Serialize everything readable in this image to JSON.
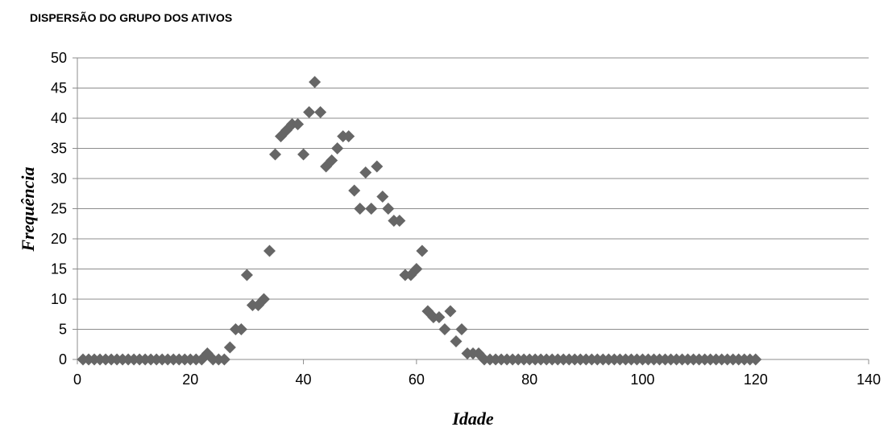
{
  "chart_data": {
    "type": "scatter",
    "title": "DISPERSÃO DO GRUPO DOS ATIVOS",
    "xlabel": "Idade",
    "ylabel": "Frequência",
    "xlim": [
      0,
      140
    ],
    "ylim": [
      0,
      50
    ],
    "xticks": [
      0,
      20,
      40,
      60,
      80,
      100,
      120,
      140
    ],
    "yticks": [
      0,
      5,
      10,
      15,
      20,
      25,
      30,
      35,
      40,
      45,
      50
    ],
    "grid": "horizontal",
    "marker": "diamond",
    "marker_color": "#666666",
    "points": [
      [
        1,
        0
      ],
      [
        2,
        0
      ],
      [
        3,
        0
      ],
      [
        4,
        0
      ],
      [
        5,
        0
      ],
      [
        6,
        0
      ],
      [
        7,
        0
      ],
      [
        8,
        0
      ],
      [
        9,
        0
      ],
      [
        10,
        0
      ],
      [
        11,
        0
      ],
      [
        12,
        0
      ],
      [
        13,
        0
      ],
      [
        14,
        0
      ],
      [
        15,
        0
      ],
      [
        16,
        0
      ],
      [
        17,
        0
      ],
      [
        18,
        0
      ],
      [
        19,
        0
      ],
      [
        20,
        0
      ],
      [
        21,
        0
      ],
      [
        22,
        0
      ],
      [
        23,
        1
      ],
      [
        24,
        0
      ],
      [
        25,
        0
      ],
      [
        26,
        0
      ],
      [
        27,
        2
      ],
      [
        28,
        5
      ],
      [
        29,
        5
      ],
      [
        30,
        14
      ],
      [
        31,
        9
      ],
      [
        32,
        9
      ],
      [
        33,
        10
      ],
      [
        34,
        18
      ],
      [
        35,
        34
      ],
      [
        36,
        37
      ],
      [
        37,
        38
      ],
      [
        38,
        39
      ],
      [
        39,
        39
      ],
      [
        40,
        34
      ],
      [
        41,
        41
      ],
      [
        42,
        46
      ],
      [
        43,
        41
      ],
      [
        44,
        32
      ],
      [
        45,
        33
      ],
      [
        46,
        35
      ],
      [
        47,
        37
      ],
      [
        48,
        37
      ],
      [
        49,
        28
      ],
      [
        50,
        25
      ],
      [
        51,
        31
      ],
      [
        52,
        25
      ],
      [
        53,
        32
      ],
      [
        54,
        27
      ],
      [
        55,
        25
      ],
      [
        56,
        23
      ],
      [
        57,
        23
      ],
      [
        58,
        14
      ],
      [
        59,
        14
      ],
      [
        60,
        15
      ],
      [
        61,
        18
      ],
      [
        62,
        8
      ],
      [
        63,
        7
      ],
      [
        64,
        7
      ],
      [
        65,
        5
      ],
      [
        66,
        8
      ],
      [
        67,
        3
      ],
      [
        68,
        5
      ],
      [
        69,
        1
      ],
      [
        70,
        1
      ],
      [
        71,
        1
      ],
      [
        72,
        0
      ],
      [
        73,
        0
      ],
      [
        74,
        0
      ],
      [
        75,
        0
      ],
      [
        76,
        0
      ],
      [
        77,
        0
      ],
      [
        78,
        0
      ],
      [
        79,
        0
      ],
      [
        80,
        0
      ],
      [
        81,
        0
      ],
      [
        82,
        0
      ],
      [
        83,
        0
      ],
      [
        84,
        0
      ],
      [
        85,
        0
      ],
      [
        86,
        0
      ],
      [
        87,
        0
      ],
      [
        88,
        0
      ],
      [
        89,
        0
      ],
      [
        90,
        0
      ],
      [
        91,
        0
      ],
      [
        92,
        0
      ],
      [
        93,
        0
      ],
      [
        94,
        0
      ],
      [
        95,
        0
      ],
      [
        96,
        0
      ],
      [
        97,
        0
      ],
      [
        98,
        0
      ],
      [
        99,
        0
      ],
      [
        100,
        0
      ],
      [
        101,
        0
      ],
      [
        102,
        0
      ],
      [
        103,
        0
      ],
      [
        104,
        0
      ],
      [
        105,
        0
      ],
      [
        106,
        0
      ],
      [
        107,
        0
      ],
      [
        108,
        0
      ],
      [
        109,
        0
      ],
      [
        110,
        0
      ],
      [
        111,
        0
      ],
      [
        112,
        0
      ],
      [
        113,
        0
      ],
      [
        114,
        0
      ],
      [
        115,
        0
      ],
      [
        116,
        0
      ],
      [
        117,
        0
      ],
      [
        118,
        0
      ],
      [
        119,
        0
      ],
      [
        120,
        0
      ]
    ]
  }
}
